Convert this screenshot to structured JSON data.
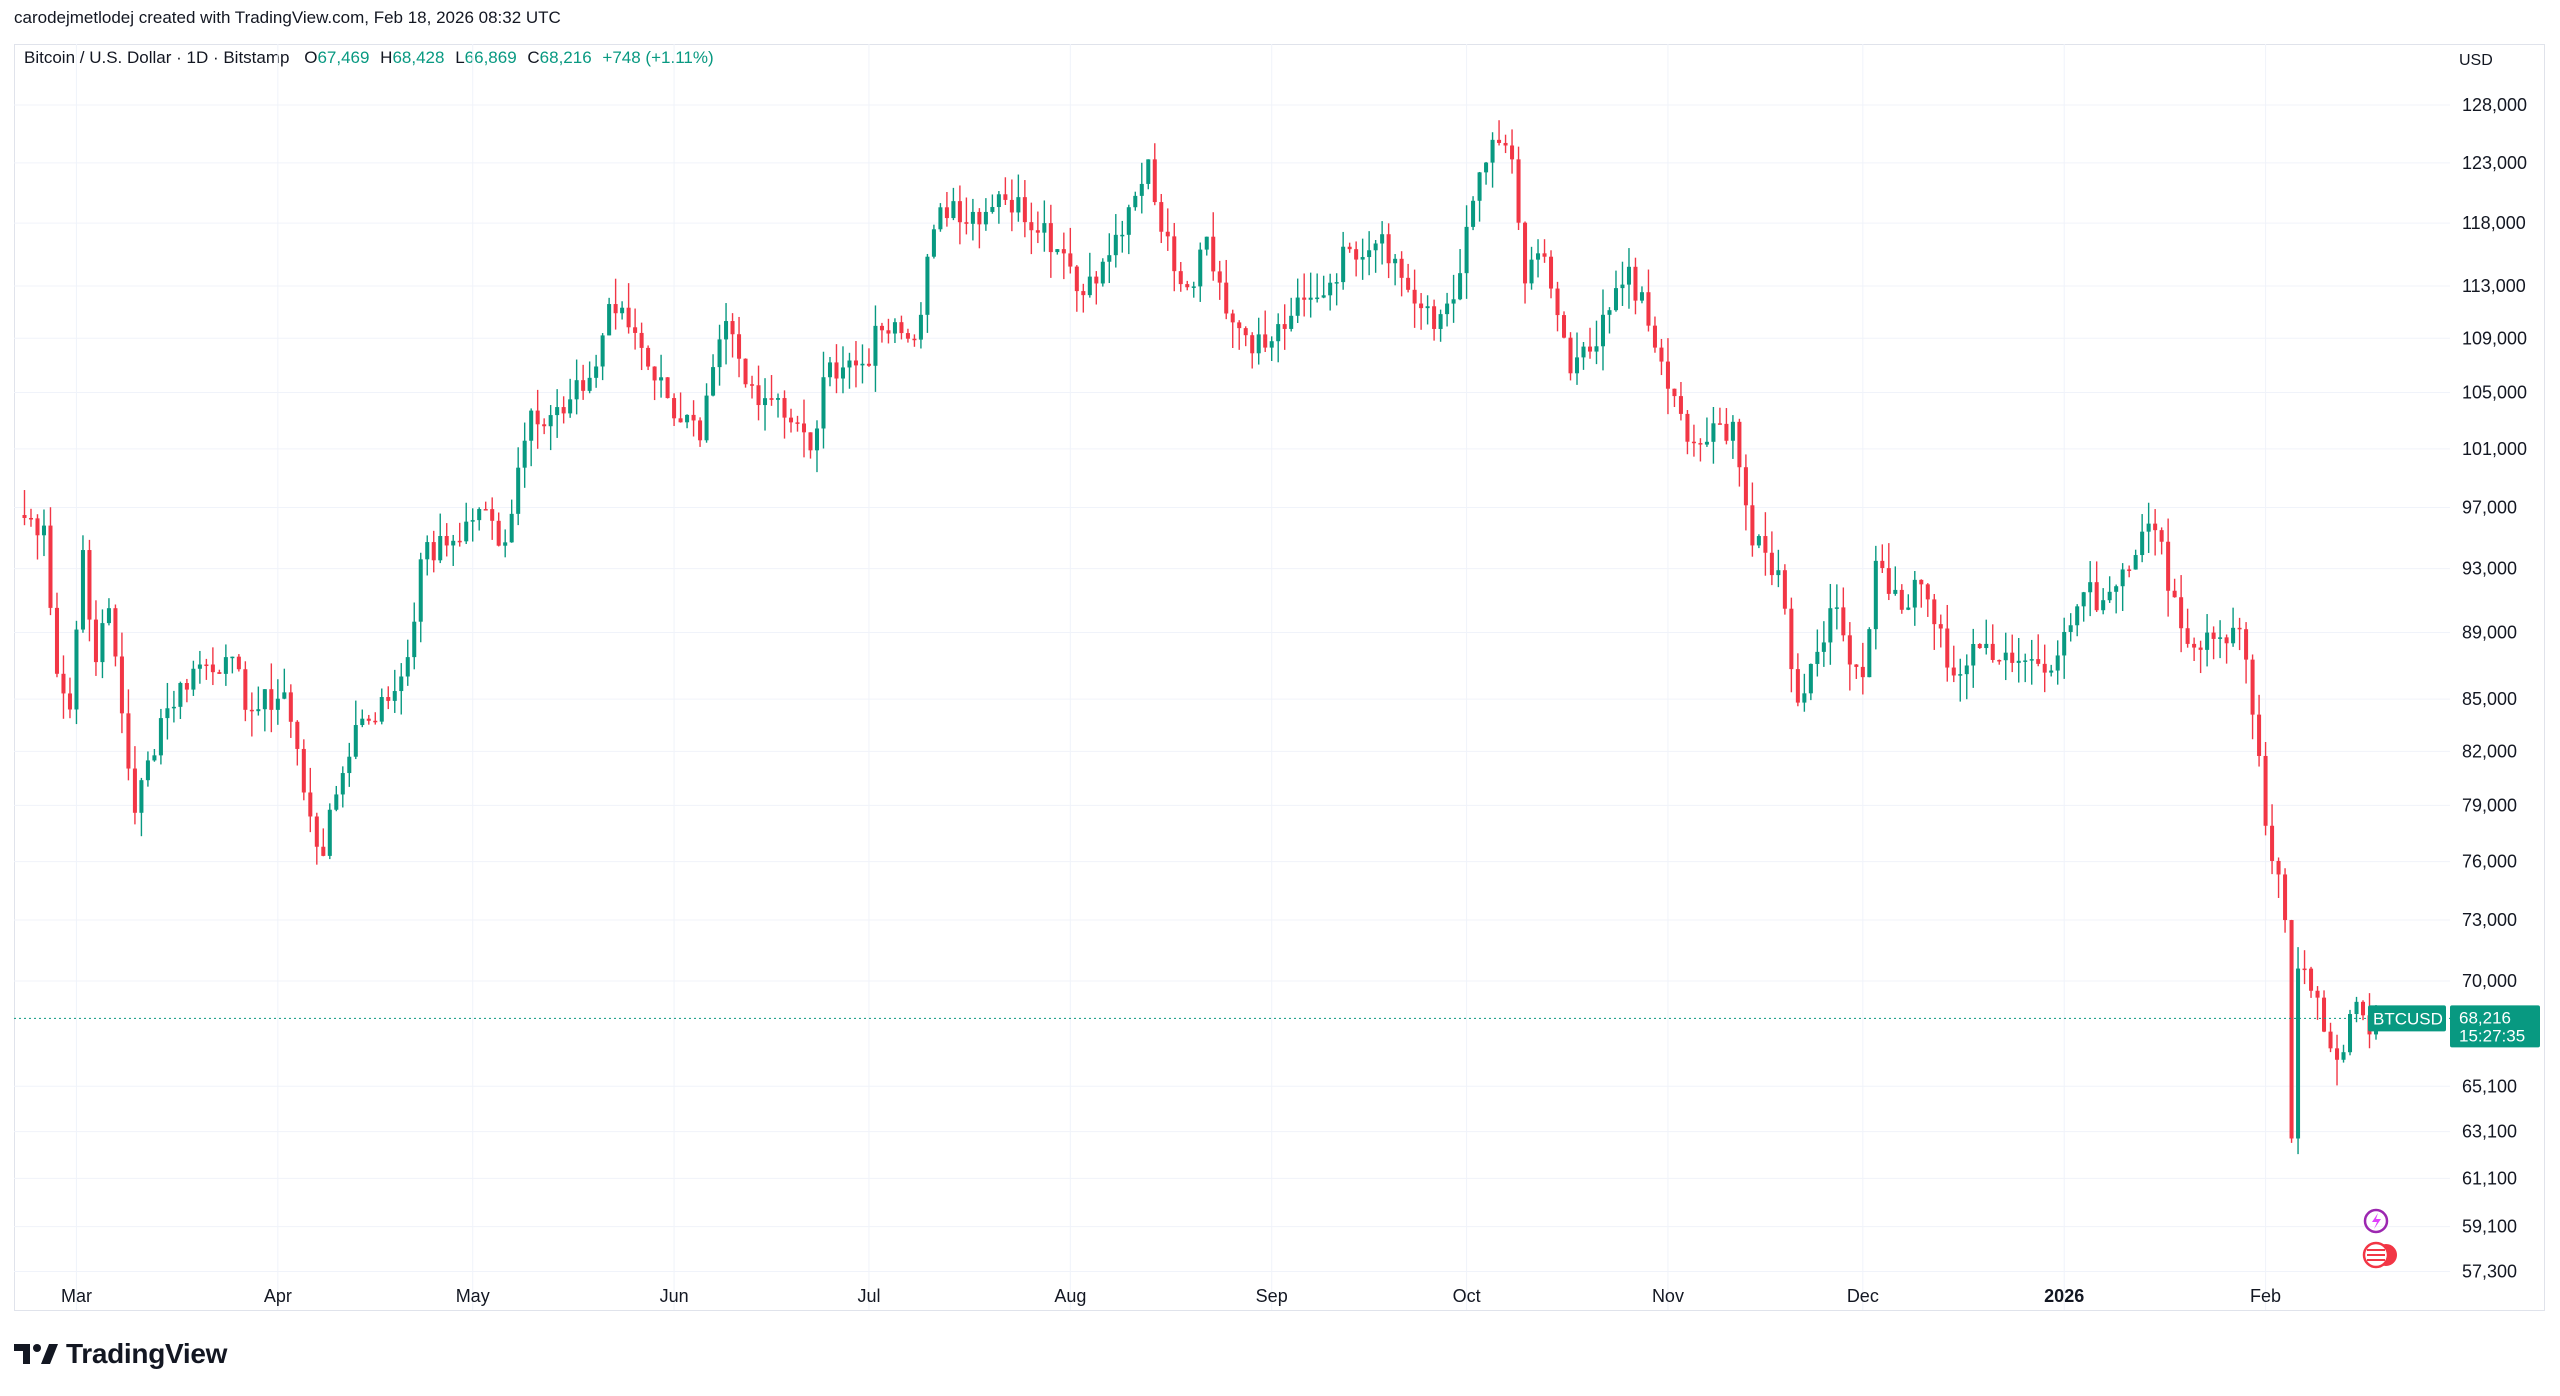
{
  "header": {
    "created_by": "carodejmetlodej created with TradingView.com, Feb 18, 2026 08:32 UTC"
  },
  "legend": {
    "symbol": "Bitcoin / U.S. Dollar · 1D · Bitstamp",
    "open_label": "O",
    "open": "67,469",
    "high_label": "H",
    "high": "68,428",
    "low_label": "L",
    "low": "66,869",
    "close_label": "C",
    "close": "68,216",
    "change": "+748 (+1.11%)"
  },
  "currency": "USD",
  "price_tag": {
    "ticker": "BTCUSD",
    "price": "68,216",
    "countdown": "15:27:35"
  },
  "footer": {
    "brand": "TradingView"
  },
  "colors": {
    "up": "#089981",
    "down": "#f23645",
    "grid": "#f0f3fa",
    "tag": "#089981"
  },
  "chart_data": {
    "type": "candlestick",
    "title": "Bitcoin / U.S. Dollar · 1D · Bitstamp",
    "scale": "log",
    "y_ticks": [
      128000,
      123000,
      118000,
      113000,
      109000,
      105000,
      101000,
      97000,
      93000,
      89000,
      85000,
      82000,
      79000,
      76000,
      73000,
      70000,
      65100,
      63100,
      61100,
      59100,
      57300
    ],
    "y_tick_labels": [
      "128,000",
      "123,000",
      "118,000",
      "113,000",
      "109,000",
      "105,000",
      "101,000",
      "97,000",
      "93,000",
      "89,000",
      "85,000",
      "82,000",
      "79,000",
      "76,000",
      "73,000",
      "70,000",
      "65,100",
      "63,100",
      "61,100",
      "59,100",
      "57,300"
    ],
    "ylim": [
      55800,
      133500
    ],
    "x_start_date": "2025-02-20",
    "x_end_date": "2026-02-18",
    "x_tick_labels": [
      {
        "date": "2025-03-01",
        "label": "Mar",
        "bold": false
      },
      {
        "date": "2025-04-01",
        "label": "Apr",
        "bold": false
      },
      {
        "date": "2025-05-01",
        "label": "May",
        "bold": false
      },
      {
        "date": "2025-06-01",
        "label": "Jun",
        "bold": false
      },
      {
        "date": "2025-07-01",
        "label": "Jul",
        "bold": false
      },
      {
        "date": "2025-08-01",
        "label": "Aug",
        "bold": false
      },
      {
        "date": "2025-09-01",
        "label": "Sep",
        "bold": false
      },
      {
        "date": "2025-10-01",
        "label": "Oct",
        "bold": false
      },
      {
        "date": "2025-11-01",
        "label": "Nov",
        "bold": false
      },
      {
        "date": "2025-12-01",
        "label": "Dec",
        "bold": false
      },
      {
        "date": "2026-01-01",
        "label": "2026",
        "bold": true
      },
      {
        "date": "2026-02-01",
        "label": "Feb",
        "bold": false
      }
    ],
    "last_price": 68216,
    "close_series": [
      {
        "date": "2025-02-20",
        "close": 96500
      },
      {
        "date": "2025-02-24",
        "close": 95800
      },
      {
        "date": "2025-02-26",
        "close": 86500
      },
      {
        "date": "2025-02-28",
        "close": 84400
      },
      {
        "date": "2025-03-02",
        "close": 94200
      },
      {
        "date": "2025-03-04",
        "close": 87200
      },
      {
        "date": "2025-03-06",
        "close": 90500
      },
      {
        "date": "2025-03-10",
        "close": 78600
      },
      {
        "date": "2025-03-14",
        "close": 83900
      },
      {
        "date": "2025-03-19",
        "close": 86800
      },
      {
        "date": "2025-03-24",
        "close": 87500
      },
      {
        "date": "2025-03-28",
        "close": 84300
      },
      {
        "date": "2025-04-02",
        "close": 85400
      },
      {
        "date": "2025-04-06",
        "close": 78400
      },
      {
        "date": "2025-04-08",
        "close": 76300
      },
      {
        "date": "2025-04-10",
        "close": 79600
      },
      {
        "date": "2025-04-13",
        "close": 83500
      },
      {
        "date": "2025-04-18",
        "close": 84900
      },
      {
        "date": "2025-04-21",
        "close": 87500
      },
      {
        "date": "2025-04-23",
        "close": 93600
      },
      {
        "date": "2025-04-28",
        "close": 94800
      },
      {
        "date": "2025-05-02",
        "close": 96900
      },
      {
        "date": "2025-05-06",
        "close": 94700
      },
      {
        "date": "2025-05-08",
        "close": 99700
      },
      {
        "date": "2025-05-10",
        "close": 103700
      },
      {
        "date": "2025-05-15",
        "close": 103500
      },
      {
        "date": "2025-05-20",
        "close": 106900
      },
      {
        "date": "2025-05-22",
        "close": 111600
      },
      {
        "date": "2025-05-26",
        "close": 109400
      },
      {
        "date": "2025-05-31",
        "close": 104600
      },
      {
        "date": "2025-06-05",
        "close": 101600
      },
      {
        "date": "2025-06-09",
        "close": 110300
      },
      {
        "date": "2025-06-12",
        "close": 105600
      },
      {
        "date": "2025-06-17",
        "close": 104600
      },
      {
        "date": "2025-06-22",
        "close": 100900
      },
      {
        "date": "2025-06-25",
        "close": 107200
      },
      {
        "date": "2025-06-30",
        "close": 107100
      },
      {
        "date": "2025-07-03",
        "close": 109600
      },
      {
        "date": "2025-07-08",
        "close": 108900
      },
      {
        "date": "2025-07-11",
        "close": 117500
      },
      {
        "date": "2025-07-14",
        "close": 119800
      },
      {
        "date": "2025-07-18",
        "close": 117900
      },
      {
        "date": "2025-07-22",
        "close": 119900
      },
      {
        "date": "2025-07-28",
        "close": 118000
      },
      {
        "date": "2025-08-02",
        "close": 112600
      },
      {
        "date": "2025-08-06",
        "close": 114900
      },
      {
        "date": "2025-08-10",
        "close": 119300
      },
      {
        "date": "2025-08-13",
        "close": 123300
      },
      {
        "date": "2025-08-15",
        "close": 117300
      },
      {
        "date": "2025-08-19",
        "close": 112900
      },
      {
        "date": "2025-08-22",
        "close": 116900
      },
      {
        "date": "2025-08-26",
        "close": 110200
      },
      {
        "date": "2025-08-31",
        "close": 108300
      },
      {
        "date": "2025-09-04",
        "close": 110700
      },
      {
        "date": "2025-09-08",
        "close": 112100
      },
      {
        "date": "2025-09-13",
        "close": 115900
      },
      {
        "date": "2025-09-18",
        "close": 117100
      },
      {
        "date": "2025-09-22",
        "close": 112700
      },
      {
        "date": "2025-09-26",
        "close": 109700
      },
      {
        "date": "2025-09-30",
        "close": 114000
      },
      {
        "date": "2025-10-03",
        "close": 122200
      },
      {
        "date": "2025-10-06",
        "close": 124700
      },
      {
        "date": "2025-10-08",
        "close": 123300
      },
      {
        "date": "2025-10-10",
        "close": 113200
      },
      {
        "date": "2025-10-13",
        "close": 115300
      },
      {
        "date": "2025-10-17",
        "close": 106400
      },
      {
        "date": "2025-10-21",
        "close": 108400
      },
      {
        "date": "2025-10-26",
        "close": 114500
      },
      {
        "date": "2025-10-30",
        "close": 108300
      },
      {
        "date": "2025-11-04",
        "close": 101500
      },
      {
        "date": "2025-11-06",
        "close": 101300
      },
      {
        "date": "2025-11-11",
        "close": 102900
      },
      {
        "date": "2025-11-14",
        "close": 94500
      },
      {
        "date": "2025-11-18",
        "close": 92900
      },
      {
        "date": "2025-11-21",
        "close": 84800
      },
      {
        "date": "2025-11-26",
        "close": 90500
      },
      {
        "date": "2025-12-01",
        "close": 86300
      },
      {
        "date": "2025-12-03",
        "close": 93500
      },
      {
        "date": "2025-12-07",
        "close": 90400
      },
      {
        "date": "2025-12-10",
        "close": 92000
      },
      {
        "date": "2025-12-15",
        "close": 86400
      },
      {
        "date": "2025-12-20",
        "close": 88300
      },
      {
        "date": "2025-12-26",
        "close": 87300
      },
      {
        "date": "2025-12-31",
        "close": 87600
      },
      {
        "date": "2026-01-04",
        "close": 91500
      },
      {
        "date": "2026-01-07",
        "close": 91000
      },
      {
        "date": "2026-01-13",
        "close": 95400
      },
      {
        "date": "2026-01-15",
        "close": 95500
      },
      {
        "date": "2026-01-20",
        "close": 88300
      },
      {
        "date": "2026-01-25",
        "close": 88700
      },
      {
        "date": "2026-01-28",
        "close": 89200
      },
      {
        "date": "2026-01-30",
        "close": 84100
      },
      {
        "date": "2026-02-01",
        "close": 77900
      },
      {
        "date": "2026-02-04",
        "close": 73000
      },
      {
        "date": "2026-02-05",
        "close": 62800
      },
      {
        "date": "2026-02-06",
        "close": 70600
      },
      {
        "date": "2026-02-09",
        "close": 69200
      },
      {
        "date": "2026-02-12",
        "close": 66300
      },
      {
        "date": "2026-02-15",
        "close": 69000
      },
      {
        "date": "2026-02-17",
        "close": 67469
      },
      {
        "date": "2026-02-18",
        "close": 68216
      }
    ]
  }
}
